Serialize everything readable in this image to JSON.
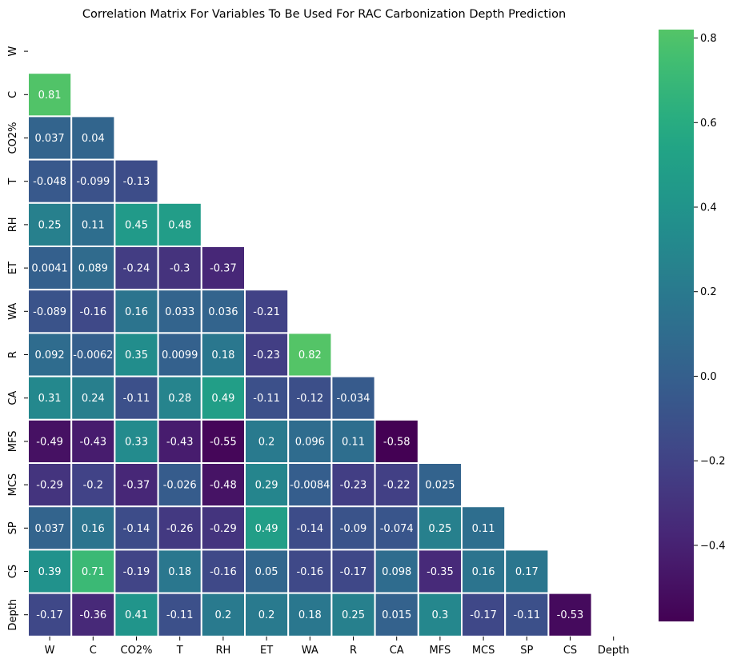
{
  "chart_data": {
    "type": "heatmap",
    "title": "Correlation Matrix For Variables To Be Used For RAC Carbonization Depth Prediction",
    "variables": [
      "W",
      "C",
      "CO2%",
      "T",
      "RH",
      "ET",
      "WA",
      "R",
      "CA",
      "MFS",
      "MCS",
      "SP",
      "CS",
      "Depth"
    ],
    "mask": "upper-triangle-and-diagonal",
    "lower_triangle": [
      [],
      [
        0.81
      ],
      [
        0.037,
        0.04
      ],
      [
        -0.048,
        -0.099,
        -0.13
      ],
      [
        0.25,
        0.11,
        0.45,
        0.48
      ],
      [
        0.0041,
        0.089,
        -0.24,
        -0.3,
        -0.37
      ],
      [
        -0.089,
        -0.16,
        0.16,
        0.033,
        0.036,
        -0.21
      ],
      [
        0.092,
        -0.0062,
        0.35,
        0.0099,
        0.18,
        -0.23,
        0.82
      ],
      [
        0.31,
        0.24,
        -0.11,
        0.28,
        0.49,
        -0.11,
        -0.12,
        -0.034
      ],
      [
        -0.49,
        -0.43,
        0.33,
        -0.43,
        -0.55,
        0.2,
        0.096,
        0.11,
        -0.58
      ],
      [
        -0.29,
        -0.2,
        -0.37,
        -0.026,
        -0.48,
        0.29,
        -0.0084,
        -0.23,
        -0.22,
        0.025
      ],
      [
        0.037,
        0.16,
        -0.14,
        -0.26,
        -0.29,
        0.49,
        -0.14,
        -0.09,
        -0.074,
        0.25,
        0.11
      ],
      [
        0.39,
        0.71,
        -0.19,
        0.18,
        -0.16,
        0.05,
        -0.16,
        -0.17,
        0.098,
        -0.35,
        0.16,
        0.17
      ],
      [
        -0.17,
        -0.36,
        0.41,
        -0.11,
        0.2,
        0.2,
        0.18,
        0.25,
        0.015,
        0.3,
        -0.17,
        -0.11,
        -0.53
      ]
    ],
    "value_range": [
      -0.58,
      0.82
    ],
    "colormap": "viridis",
    "colorbar": {
      "ticks": [
        -0.4,
        -0.2,
        0.0,
        0.2,
        0.4,
        0.6,
        0.8
      ],
      "tick_labels": [
        "−0.4",
        "−0.2",
        "0.0",
        "0.2",
        "0.4",
        "0.6",
        "0.8"
      ]
    },
    "cell_border_color": "#ffffff",
    "annotation_light_color": "#ffffff"
  }
}
